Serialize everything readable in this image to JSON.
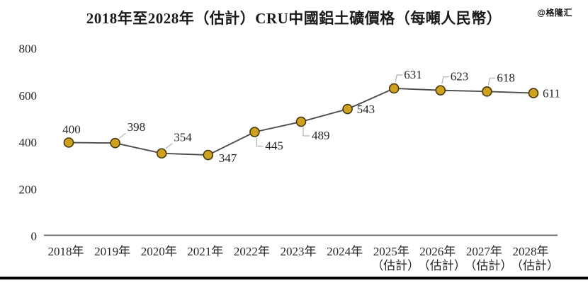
{
  "title": "2018年至2028年（估計）CRU中國鋁土礦價格（每噸人民幣）",
  "watermark": "@格隆汇",
  "chart_data": {
    "type": "line",
    "title": "2018年至2028年（估計）CRU中國鋁土礦價格（每噸人民幣）",
    "categories": [
      "2018年",
      "2019年",
      "2020年",
      "2021年",
      "2022年",
      "2023年",
      "2024年",
      "2025年\n（估計）",
      "2026年\n（估計）",
      "2027年\n（估計）",
      "2028年\n（估計）"
    ],
    "values": [
      400,
      398,
      354,
      347,
      445,
      489,
      543,
      631,
      623,
      618,
      611
    ],
    "value_labels": [
      "400",
      "398",
      "354",
      "347",
      "445",
      "489",
      "543",
      "631",
      "623",
      "618",
      "611"
    ],
    "y_ticks": [
      0,
      200,
      400,
      600,
      800
    ],
    "y_tick_labels": [
      "0",
      "200",
      "400",
      "600",
      "800"
    ],
    "ylim": [
      0,
      800
    ],
    "xlabel": "",
    "ylabel": "",
    "grid": false,
    "legend": false,
    "colors": {
      "marker_fill": "#D0A11F",
      "marker_stroke": "#44380E",
      "line": "#4D4D4D",
      "leader": "#B0B0B0",
      "text": "#262626",
      "axis": "#5A5A5A"
    }
  }
}
